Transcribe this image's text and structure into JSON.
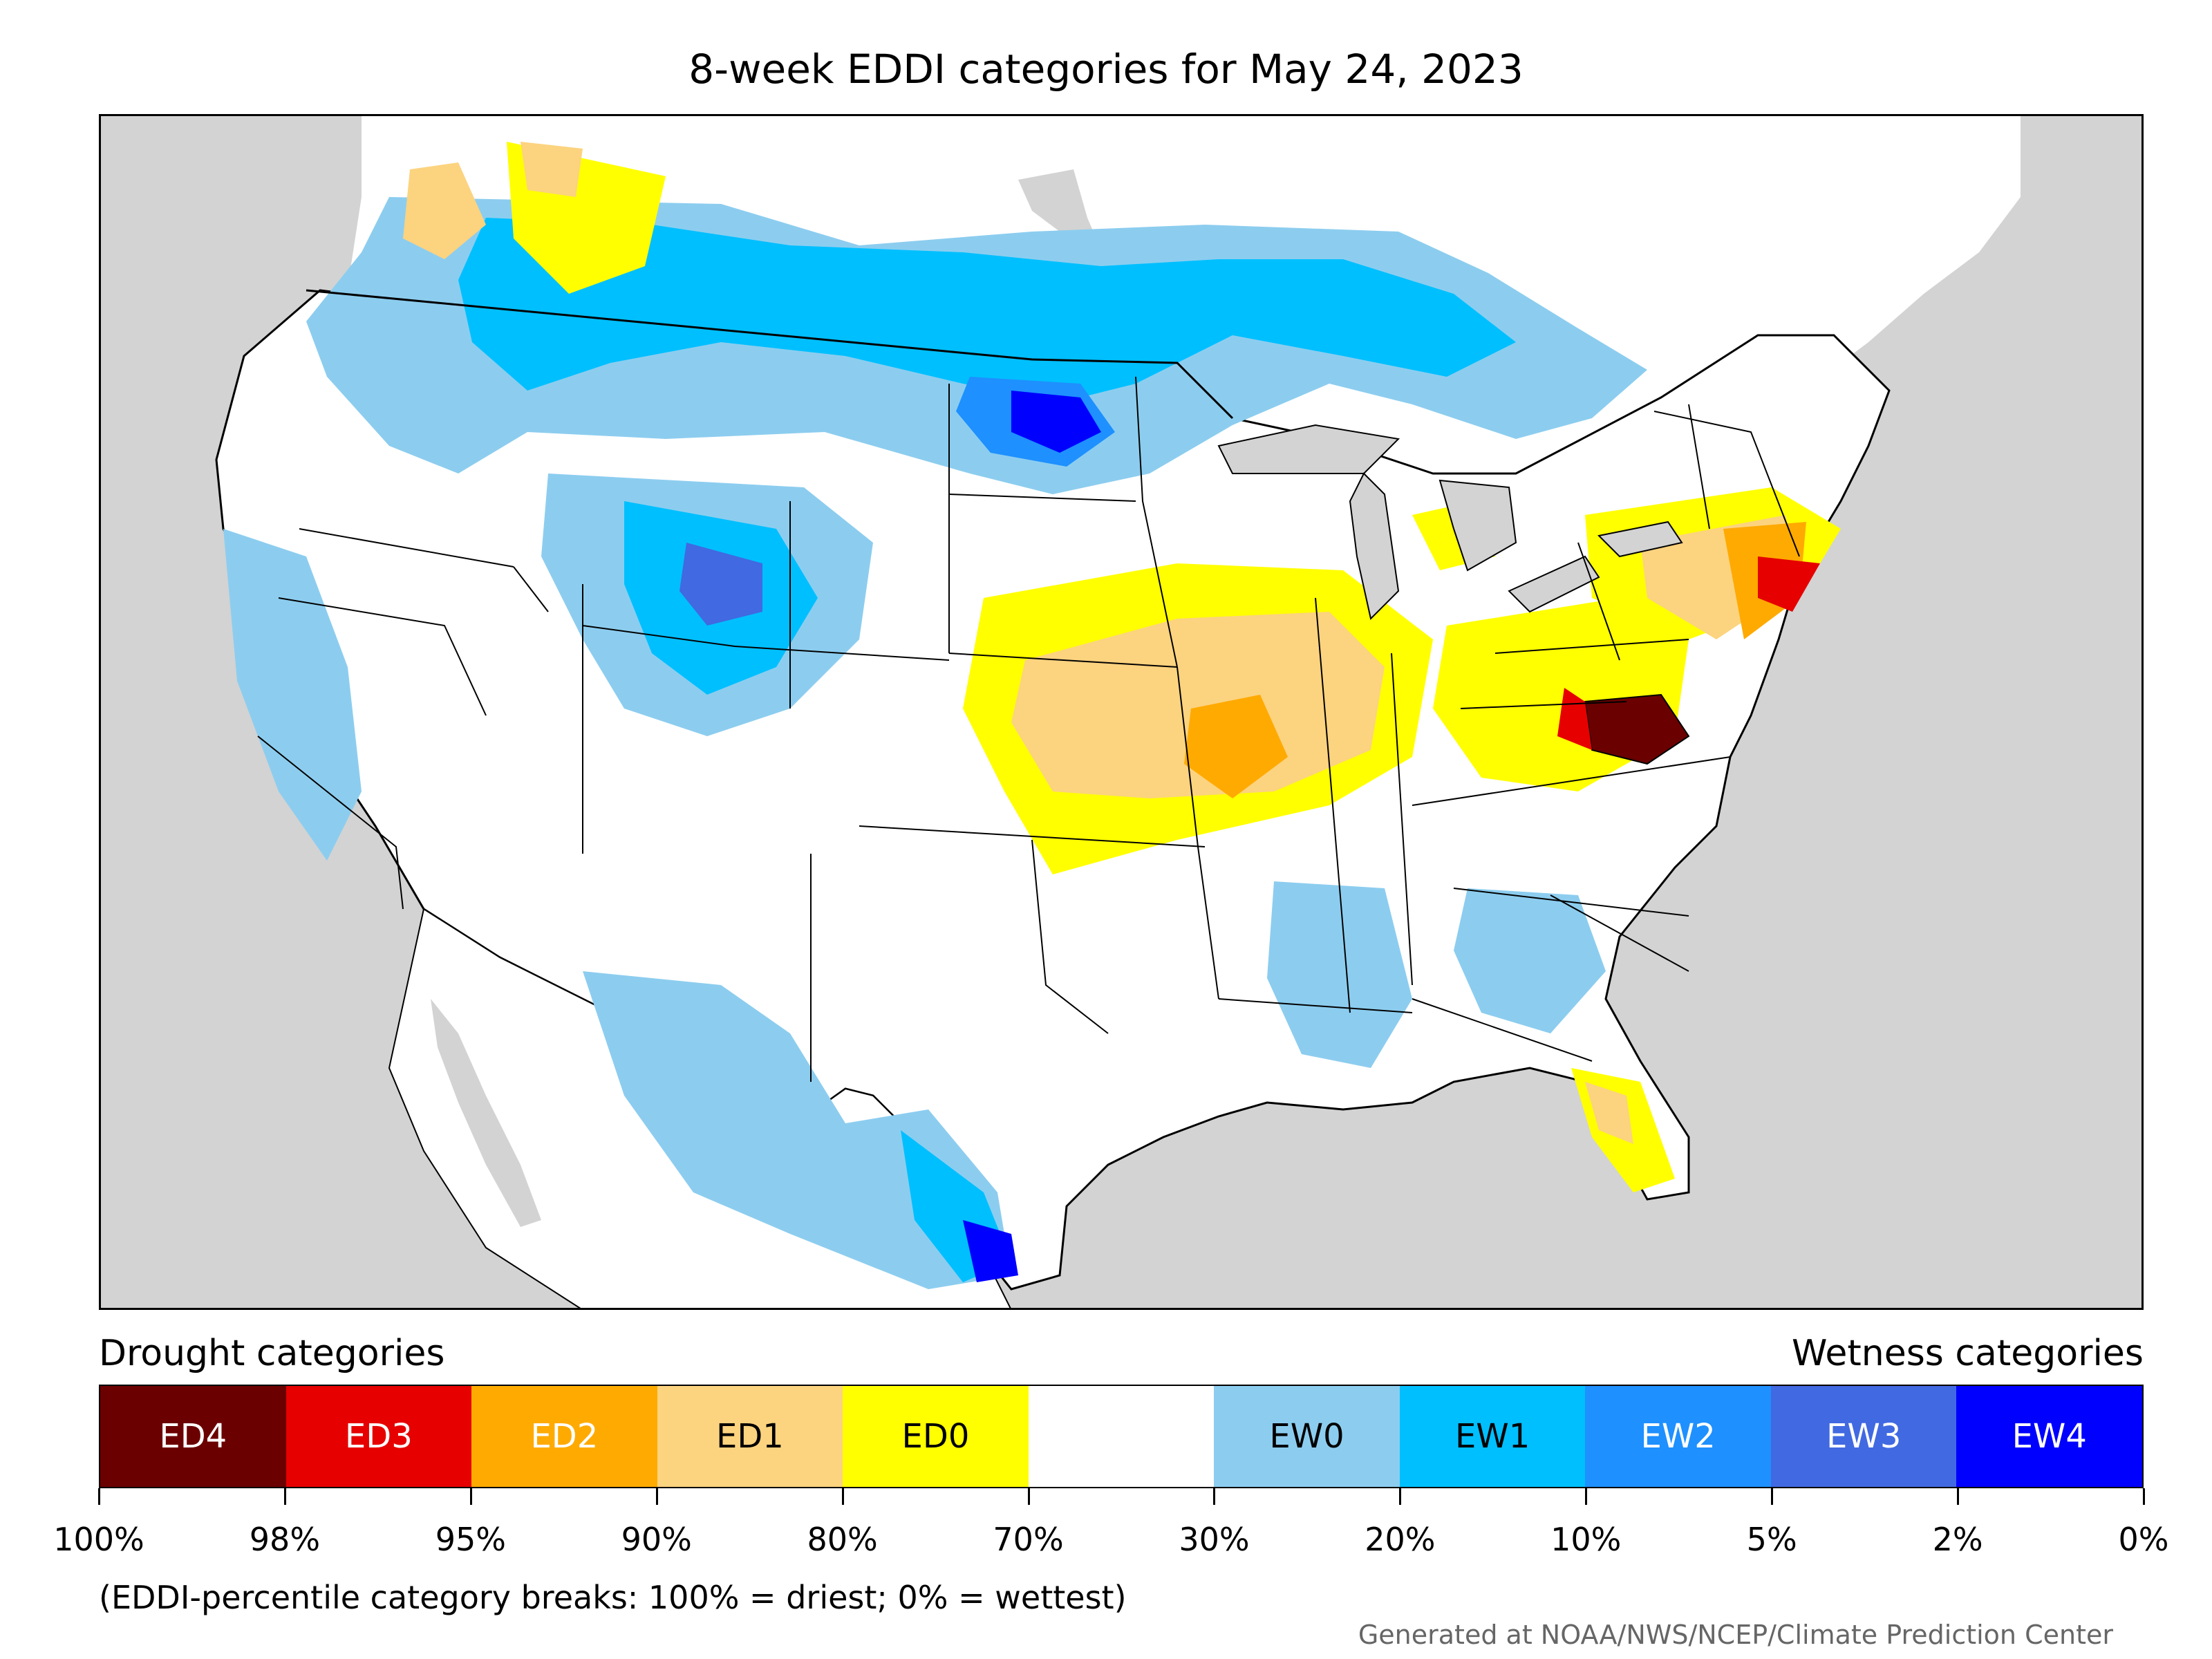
{
  "title": "8-week EDDI categories for May 24, 2023",
  "map": {
    "region": "Contiguous United States",
    "background_land": "#ffffff",
    "background_outside": "#d3d3d3",
    "water_lakes": "#d3d3d3"
  },
  "legend": {
    "drought_heading": "Drought categories",
    "wetness_heading": "Wetness categories",
    "categories": [
      {
        "label": "ED4",
        "color": "#6b0000",
        "text_color": "#ffffff"
      },
      {
        "label": "ED3",
        "color": "#e60000",
        "text_color": "#ffffff"
      },
      {
        "label": "ED2",
        "color": "#ffaa00",
        "text_color": "#ffffff"
      },
      {
        "label": "ED1",
        "color": "#fcd37f",
        "text_color": "#000000"
      },
      {
        "label": "ED0",
        "color": "#ffff00",
        "text_color": "#000000"
      },
      {
        "label": "",
        "color": "#ffffff",
        "text_color": "#000000"
      },
      {
        "label": "EW0",
        "color": "#8ccdef",
        "text_color": "#000000"
      },
      {
        "label": "EW1",
        "color": "#00bfff",
        "text_color": "#000000"
      },
      {
        "label": "EW2",
        "color": "#1e90ff",
        "text_color": "#ffffff"
      },
      {
        "label": "EW3",
        "color": "#4169e1",
        "text_color": "#ffffff"
      },
      {
        "label": "EW4",
        "color": "#0000ff",
        "text_color": "#ffffff"
      }
    ],
    "tick_labels": [
      "100%",
      "98%",
      "95%",
      "90%",
      "80%",
      "70%",
      "30%",
      "20%",
      "10%",
      "5%",
      "2%",
      "0%"
    ]
  },
  "note": "(EDDI-percentile category breaks: 100% = driest; 0% = wettest)",
  "credit": "Generated at NOAA/NWS/NCEP/Climate Prediction Center"
}
